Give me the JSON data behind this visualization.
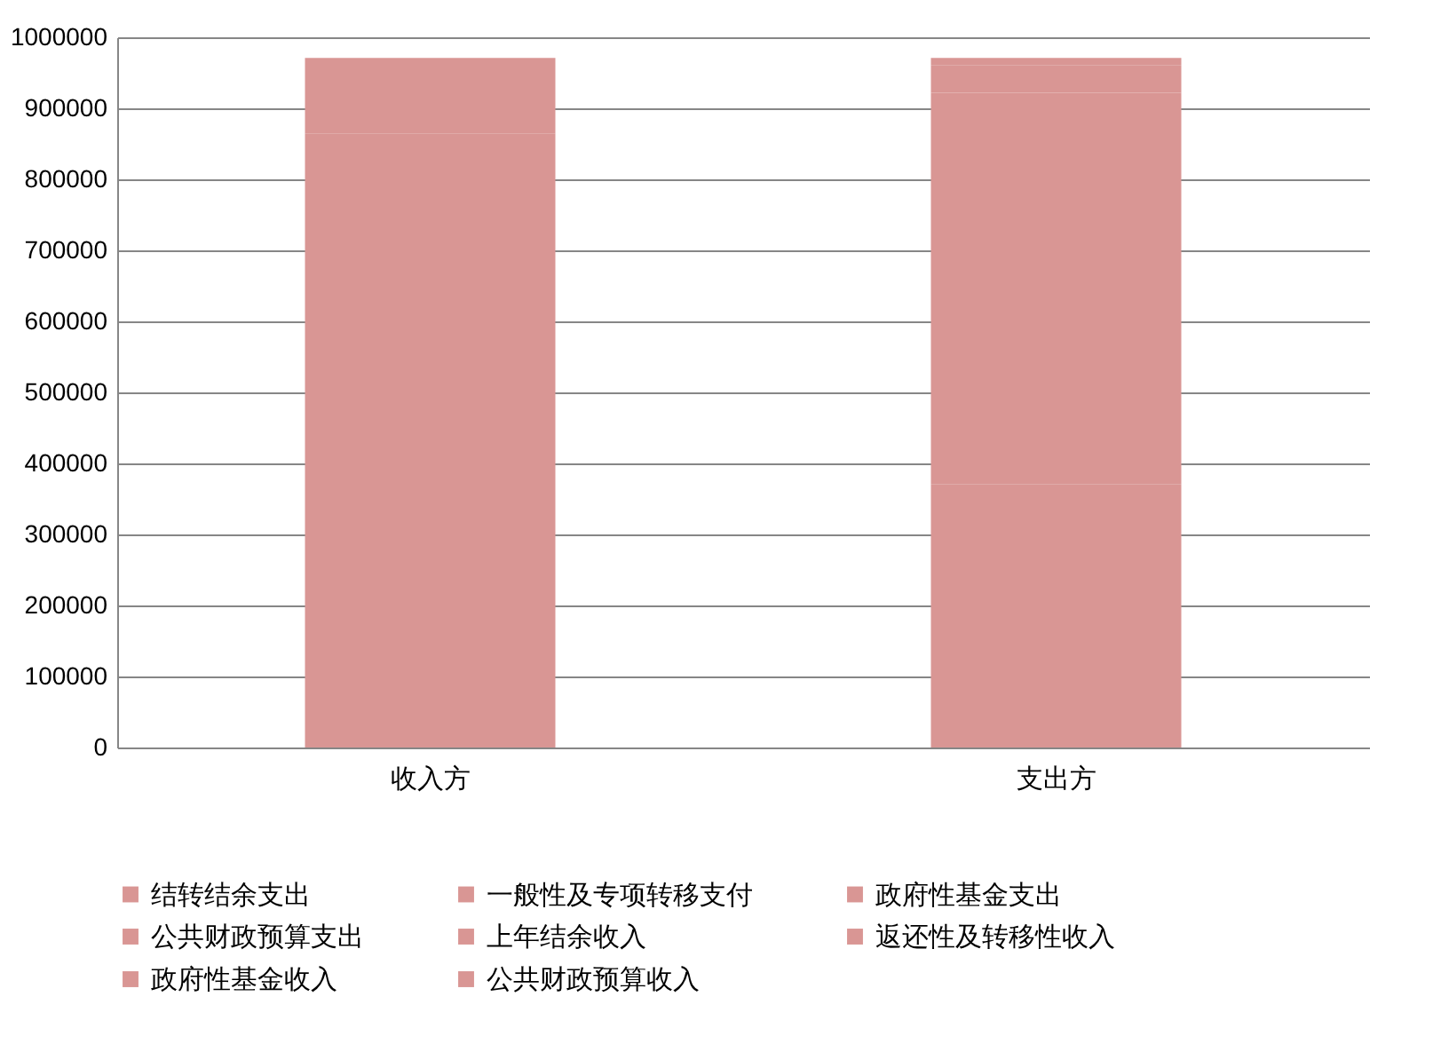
{
  "chart_data": {
    "type": "bar",
    "stacked": true,
    "categories": [
      "收入方",
      "支出方"
    ],
    "series": [
      {
        "name": "公共财政预算收入",
        "color": "#d99694",
        "values": [
          330000,
          null
        ]
      },
      {
        "name": "政府性基金收入",
        "color": "#d99694",
        "values": [
          534000,
          null
        ]
      },
      {
        "name": "返还性及转移性收入",
        "color": "#d99694",
        "values": [
          107000,
          null
        ]
      },
      {
        "name": "上年结余收入",
        "color": "#d99694",
        "values": [
          0,
          null
        ]
      },
      {
        "name": "公共财政预算支出",
        "color": "#d99694",
        "values": [
          null,
          371000
        ]
      },
      {
        "name": "政府性基金支出",
        "color": "#d99694",
        "values": [
          null,
          551000
        ]
      },
      {
        "name": "一般性及专项转移支付",
        "color": "#d99694",
        "values": [
          null,
          39000
        ]
      },
      {
        "name": "结转结余支出",
        "color": "#d99694",
        "values": [
          null,
          10000
        ]
      }
    ],
    "ylim": [
      0,
      1000000
    ],
    "yticks": [
      0,
      100000,
      200000,
      300000,
      400000,
      500000,
      600000,
      700000,
      800000,
      900000,
      1000000
    ],
    "grid": "y",
    "legend": "bottom"
  }
}
